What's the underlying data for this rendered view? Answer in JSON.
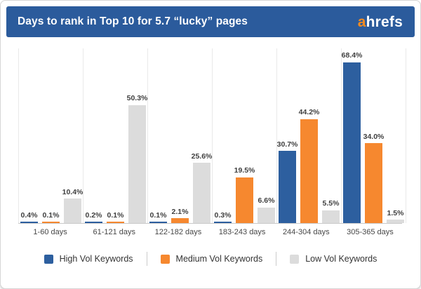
{
  "header": {
    "title": "Days to rank in Top 10 for 5.7 “lucky” pages",
    "logo": {
      "prefix": "a",
      "rest": "hrefs"
    }
  },
  "colors": {
    "header_bg": "#2b5b9c",
    "logo_accent": "#f68b1f",
    "high_vol": "#2d5f9f",
    "medium_vol": "#f6882f",
    "low_vol": "#dcdcdc"
  },
  "chart_data": {
    "type": "bar",
    "title": "Days to rank in Top 10 for 5.7 “lucky” pages",
    "categories": [
      "1-60 days",
      "61-121 days",
      "122-182 days",
      "183-243 days",
      "244-304 days",
      "305-365 days"
    ],
    "series": [
      {
        "name": "High Vol Keywords",
        "color": "#2d5f9f",
        "values": [
          0.4,
          0.2,
          0.1,
          0.3,
          30.7,
          68.4
        ]
      },
      {
        "name": "Medium Vol Keywords",
        "color": "#f6882f",
        "values": [
          0.1,
          0.1,
          2.1,
          19.5,
          44.2,
          34.0
        ]
      },
      {
        "name": "Low Vol Keywords",
        "color": "#dcdcdc",
        "values": [
          10.4,
          50.3,
          25.6,
          6.6,
          5.5,
          1.5
        ]
      }
    ],
    "value_suffix": "%",
    "value_decimals": 1,
    "ylim": [
      0,
      72
    ],
    "xlabel": "",
    "ylabel": "",
    "grid": "vertical-group-separators",
    "legend_position": "bottom"
  }
}
